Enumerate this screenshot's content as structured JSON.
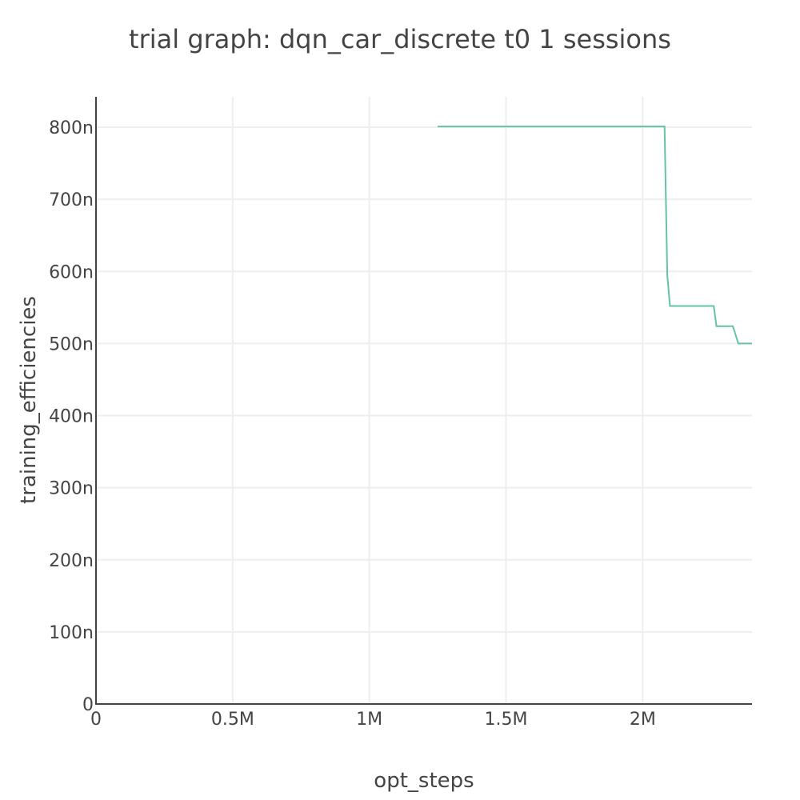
{
  "chart_data": {
    "type": "line",
    "title": "trial graph: dqn_car_discrete t0 1 sessions",
    "xlabel": "opt_steps",
    "ylabel": "training_efficiencies",
    "xlim": [
      0,
      2400000
    ],
    "ylim": [
      0,
      8.4e-07
    ],
    "x_ticks": [
      {
        "value": 0,
        "label": "0"
      },
      {
        "value": 500000,
        "label": "0.5M"
      },
      {
        "value": 1000000,
        "label": "1M"
      },
      {
        "value": 1500000,
        "label": "1.5M"
      },
      {
        "value": 2000000,
        "label": "2M"
      }
    ],
    "y_ticks": [
      {
        "value": 0,
        "label": "0"
      },
      {
        "value": 1e-07,
        "label": "100n"
      },
      {
        "value": 2e-07,
        "label": "200n"
      },
      {
        "value": 3e-07,
        "label": "300n"
      },
      {
        "value": 4e-07,
        "label": "400n"
      },
      {
        "value": 5e-07,
        "label": "500n"
      },
      {
        "value": 6e-07,
        "label": "600n"
      },
      {
        "value": 7e-07,
        "label": "700n"
      },
      {
        "value": 8e-07,
        "label": "800n"
      }
    ],
    "grid": true,
    "series": [
      {
        "color": "#66c2a5",
        "x": [
          1250000,
          2080000,
          2090000,
          2100000,
          2260000,
          2270000,
          2330000,
          2350000,
          2400000
        ],
        "y": [
          8.01e-07,
          8.01e-07,
          5.95e-07,
          5.52e-07,
          5.52e-07,
          5.24e-07,
          5.24e-07,
          5e-07,
          5e-07
        ]
      }
    ]
  }
}
